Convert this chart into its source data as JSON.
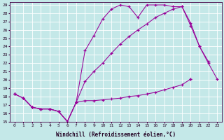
{
  "xlabel": "Windchill (Refroidissement éolien,°C)",
  "xlim": [
    -0.5,
    23.5
  ],
  "ylim": [
    15,
    29.3
  ],
  "xticks": [
    0,
    1,
    2,
    3,
    4,
    5,
    6,
    7,
    8,
    9,
    10,
    11,
    12,
    13,
    14,
    15,
    16,
    17,
    18,
    19,
    20,
    21,
    22,
    23
  ],
  "yticks": [
    15,
    16,
    17,
    18,
    19,
    20,
    21,
    22,
    23,
    24,
    25,
    26,
    27,
    28,
    29
  ],
  "bg_color": "#c4e8e8",
  "line_color": "#990099",
  "grid_color": "#b0d8d8",
  "series": [
    {
      "x": [
        0,
        1,
        2,
        3,
        4,
        5,
        6,
        7,
        8,
        9,
        10,
        11,
        12,
        13,
        14,
        15,
        16,
        17,
        18,
        19,
        20,
        21,
        22,
        23
      ],
      "y": [
        18.3,
        null,
        null,
        null,
        null,
        null,
        null,
        null,
        null,
        null,
        null,
        null,
        null,
        null,
        null,
        null,
        null,
        null,
        null,
        null,
        20.1,
        null,
        null,
        null
      ]
    },
    {
      "x": [
        0,
        1,
        2,
        3,
        4,
        5,
        6,
        7,
        8,
        9,
        10,
        11,
        12,
        13,
        14,
        15,
        16,
        17,
        18,
        19,
        20,
        21,
        22,
        23
      ],
      "y": [
        18.3,
        17.8,
        16.7,
        16.5,
        16.5,
        16.2,
        15.0,
        17.3,
        17.5,
        17.5,
        17.6,
        17.7,
        17.8,
        18.0,
        18.1,
        18.3,
        18.5,
        18.8,
        19.1,
        19.4,
        20.1,
        null,
        null,
        null
      ]
    },
    {
      "x": [
        1,
        2,
        3,
        4,
        5,
        6,
        7,
        8,
        9,
        10,
        11,
        12,
        13,
        14,
        15,
        16,
        17,
        18,
        19,
        20,
        21,
        22,
        23
      ],
      "y": [
        17.8,
        16.7,
        16.5,
        16.5,
        16.2,
        15.0,
        17.3,
        19.8,
        21.0,
        22.0,
        23.2,
        24.3,
        25.2,
        26.0,
        26.7,
        27.5,
        28.0,
        28.5,
        28.8,
        26.5,
        24.0,
        22.0,
        20.1
      ]
    },
    {
      "x": [
        0,
        1,
        2,
        3,
        4,
        5,
        6,
        7,
        8,
        9,
        10,
        11,
        12,
        13,
        14,
        15,
        16,
        17,
        18,
        19,
        20,
        21,
        22,
        23
      ],
      "y": [
        18.3,
        17.8,
        16.7,
        16.5,
        16.5,
        16.2,
        15.0,
        17.3,
        23.5,
        25.3,
        27.3,
        28.5,
        29.0,
        28.8,
        27.5,
        29.0,
        29.0,
        29.0,
        28.8,
        28.8,
        26.8,
        24.0,
        22.2,
        null
      ]
    }
  ]
}
